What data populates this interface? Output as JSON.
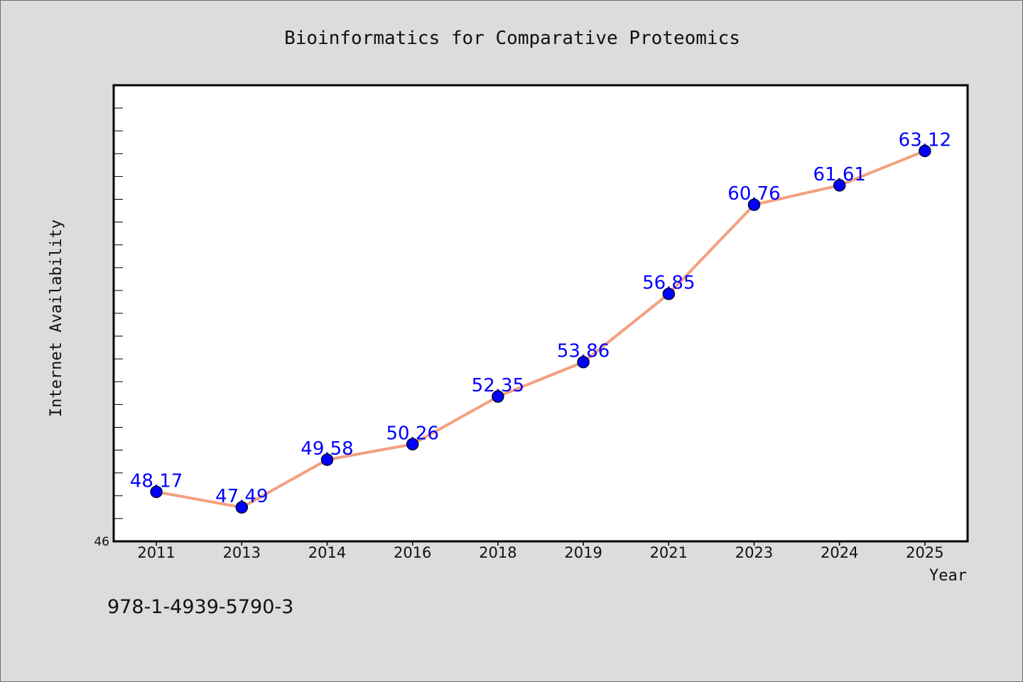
{
  "footer_text": "978-1-4939-5790-3",
  "chart_data": {
    "type": "line",
    "title": "Bioinformatics for Comparative Proteomics",
    "xlabel": "Year",
    "ylabel": "Internet Availability",
    "categories": [
      "2011",
      "2013",
      "2014",
      "2016",
      "2018",
      "2019",
      "2021",
      "2023",
      "2024",
      "2025"
    ],
    "series": [
      {
        "values": [
          48.17,
          47.49,
          49.58,
          50.26,
          52.35,
          53.86,
          56.85,
          60.76,
          61.61,
          63.12
        ]
      }
    ],
    "ylim": [
      46,
      66
    ],
    "yticks": {
      "step": 1,
      "labeled": [
        46
      ]
    },
    "data_labels": true,
    "grid": false,
    "legend": "none",
    "colors": {
      "line": "#f4a07e",
      "marker": "#0000ff",
      "marker_edge": "#000033",
      "data_label": "#0000ff"
    }
  }
}
